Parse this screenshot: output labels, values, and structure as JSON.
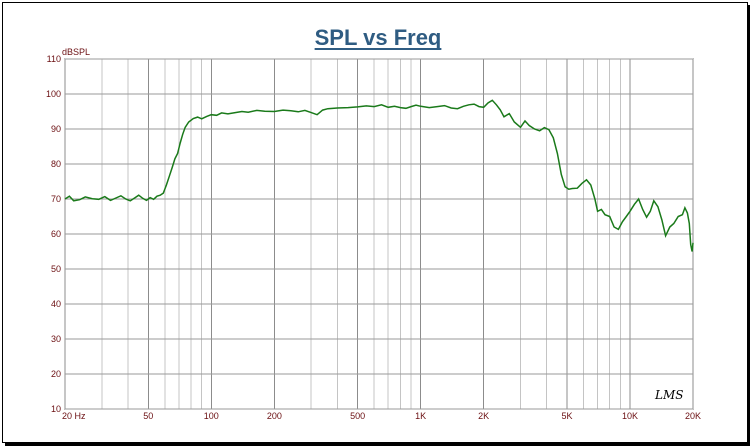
{
  "chart_data": {
    "type": "line",
    "title": "SPL vs Freq",
    "ylabel": "dBSPL",
    "xscale": "log",
    "xlim": [
      20,
      20000
    ],
    "ylim": [
      10,
      110
    ],
    "grid": true,
    "yticks": [
      10,
      20,
      30,
      40,
      50,
      60,
      70,
      80,
      90,
      100,
      110
    ],
    "xticks": [
      {
        "value": 20,
        "label": "20  Hz"
      },
      {
        "value": 50,
        "label": "50"
      },
      {
        "value": 100,
        "label": "100"
      },
      {
        "value": 200,
        "label": "200"
      },
      {
        "value": 500,
        "label": "500"
      },
      {
        "value": 1000,
        "label": "1K"
      },
      {
        "value": 2000,
        "label": "2K"
      },
      {
        "value": 5000,
        "label": "5K"
      },
      {
        "value": 10000,
        "label": "10K"
      },
      {
        "value": 20000,
        "label": "20K"
      }
    ],
    "series": [
      {
        "color": "#1a7a1a",
        "points": [
          [
            20,
            70.0
          ],
          [
            21,
            70.8
          ],
          [
            22,
            69.5
          ],
          [
            23.5,
            69.8
          ],
          [
            25,
            70.6
          ],
          [
            27,
            70.1
          ],
          [
            29,
            69.9
          ],
          [
            31,
            70.7
          ],
          [
            33,
            69.6
          ],
          [
            35,
            70.3
          ],
          [
            37,
            70.9
          ],
          [
            39,
            70.0
          ],
          [
            41,
            69.5
          ],
          [
            43,
            70.3
          ],
          [
            45,
            71.1
          ],
          [
            47,
            70.2
          ],
          [
            49,
            69.6
          ],
          [
            51,
            70.4
          ],
          [
            53,
            69.9
          ],
          [
            55,
            70.8
          ],
          [
            57,
            71.1
          ],
          [
            59,
            71.7
          ],
          [
            61,
            74.0
          ],
          [
            63,
            76.5
          ],
          [
            65,
            79.0
          ],
          [
            67,
            81.5
          ],
          [
            69,
            83.0
          ],
          [
            71,
            86.0
          ],
          [
            73,
            88.5
          ],
          [
            75,
            90.5
          ],
          [
            78,
            92.0
          ],
          [
            82,
            93.0
          ],
          [
            86,
            93.4
          ],
          [
            90,
            92.9
          ],
          [
            95,
            93.6
          ],
          [
            100,
            94.1
          ],
          [
            106,
            93.9
          ],
          [
            112,
            94.6
          ],
          [
            120,
            94.3
          ],
          [
            130,
            94.7
          ],
          [
            140,
            95.0
          ],
          [
            150,
            94.8
          ],
          [
            165,
            95.3
          ],
          [
            180,
            95.1
          ],
          [
            200,
            95.0
          ],
          [
            220,
            95.4
          ],
          [
            240,
            95.2
          ],
          [
            260,
            94.9
          ],
          [
            280,
            95.3
          ],
          [
            300,
            94.7
          ],
          [
            320,
            94.1
          ],
          [
            340,
            95.4
          ],
          [
            360,
            95.8
          ],
          [
            400,
            96.0
          ],
          [
            450,
            96.1
          ],
          [
            500,
            96.3
          ],
          [
            550,
            96.6
          ],
          [
            600,
            96.4
          ],
          [
            650,
            96.9
          ],
          [
            700,
            96.2
          ],
          [
            750,
            96.5
          ],
          [
            800,
            96.1
          ],
          [
            850,
            95.9
          ],
          [
            900,
            96.4
          ],
          [
            950,
            96.8
          ],
          [
            1000,
            96.5
          ],
          [
            1100,
            96.1
          ],
          [
            1200,
            96.4
          ],
          [
            1300,
            96.7
          ],
          [
            1400,
            96.0
          ],
          [
            1500,
            95.8
          ],
          [
            1600,
            96.5
          ],
          [
            1700,
            96.9
          ],
          [
            1800,
            97.1
          ],
          [
            1900,
            96.4
          ],
          [
            2000,
            96.2
          ],
          [
            2100,
            97.5
          ],
          [
            2200,
            98.2
          ],
          [
            2300,
            96.9
          ],
          [
            2400,
            95.5
          ],
          [
            2500,
            93.5
          ],
          [
            2650,
            94.4
          ],
          [
            2800,
            92.0
          ],
          [
            3000,
            90.5
          ],
          [
            3150,
            92.3
          ],
          [
            3300,
            91.0
          ],
          [
            3500,
            90.0
          ],
          [
            3700,
            89.5
          ],
          [
            3900,
            90.4
          ],
          [
            4100,
            89.8
          ],
          [
            4300,
            87.5
          ],
          [
            4500,
            83.0
          ],
          [
            4700,
            77.0
          ],
          [
            4900,
            73.5
          ],
          [
            5100,
            72.8
          ],
          [
            5300,
            73.0
          ],
          [
            5600,
            73.1
          ],
          [
            5900,
            74.5
          ],
          [
            6200,
            75.5
          ],
          [
            6500,
            74.0
          ],
          [
            6800,
            70.0
          ],
          [
            7000,
            66.5
          ],
          [
            7300,
            67.0
          ],
          [
            7600,
            65.5
          ],
          [
            8000,
            65.0
          ],
          [
            8400,
            62.0
          ],
          [
            8800,
            61.3
          ],
          [
            9200,
            63.5
          ],
          [
            9600,
            65.0
          ],
          [
            10000,
            66.5
          ],
          [
            10500,
            68.5
          ],
          [
            11000,
            70.0
          ],
          [
            11500,
            67.0
          ],
          [
            12000,
            64.8
          ],
          [
            12500,
            66.5
          ],
          [
            13000,
            69.5
          ],
          [
            13600,
            67.8
          ],
          [
            14200,
            64.0
          ],
          [
            14800,
            59.5
          ],
          [
            15500,
            62.0
          ],
          [
            16200,
            63.0
          ],
          [
            17000,
            65.0
          ],
          [
            17800,
            65.5
          ],
          [
            18300,
            67.5
          ],
          [
            18800,
            66.0
          ],
          [
            19200,
            63.0
          ],
          [
            19500,
            57.0
          ],
          [
            19800,
            55.0
          ],
          [
            20000,
            57.5
          ]
        ]
      }
    ]
  },
  "watermark": {
    "text": "LMS"
  }
}
